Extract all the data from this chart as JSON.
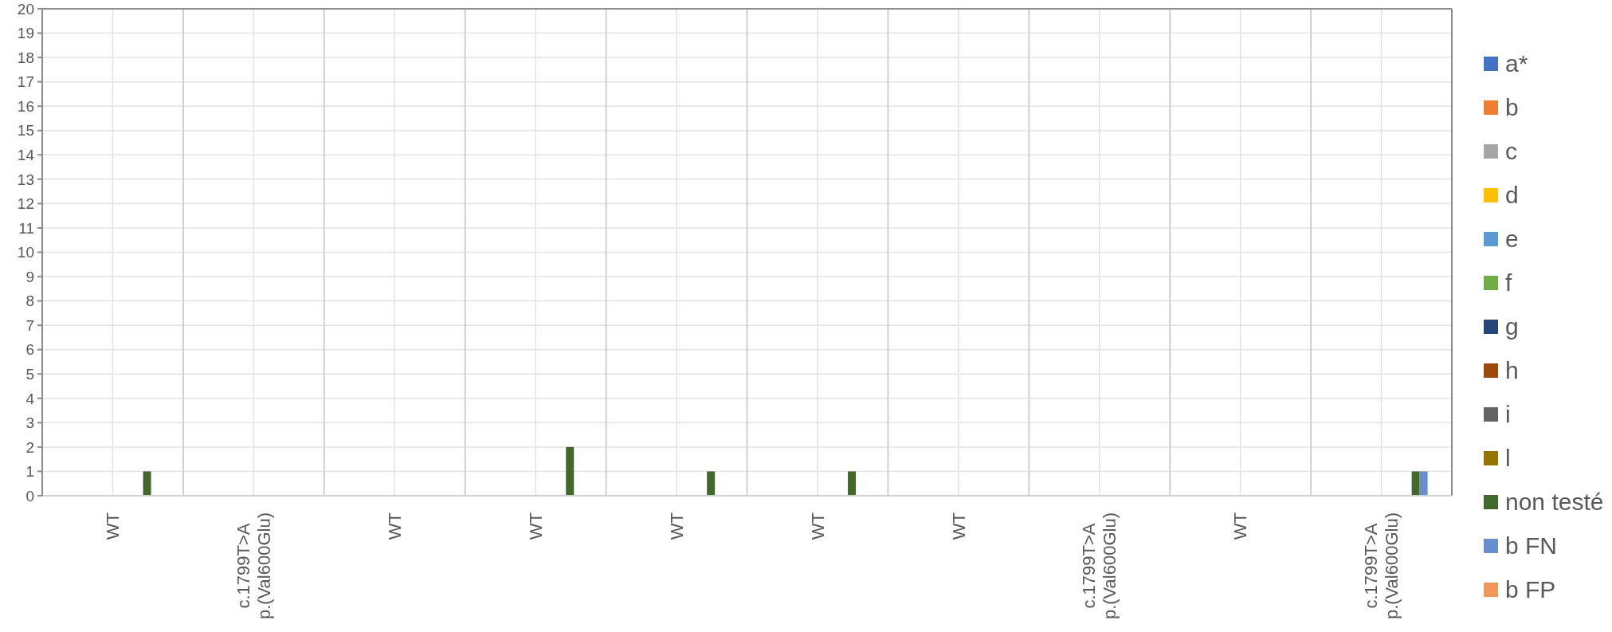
{
  "chart_data": {
    "type": "bar",
    "categories": [
      "WT",
      "c.1799T>A\np.(Val600Glu)",
      "WT",
      "WT",
      "WT",
      "WT",
      "WT",
      "c.1799T>A\np.(Val600Glu)",
      "WT",
      "c.1799T>A\np.(Val600Glu)"
    ],
    "series": [
      {
        "name": "a*",
        "color": "#4472c4",
        "values": [
          0,
          0,
          0,
          0,
          0,
          0,
          0,
          0,
          0,
          0
        ]
      },
      {
        "name": "b",
        "color": "#ed7d31",
        "values": [
          0,
          0,
          0,
          0,
          0,
          0,
          0,
          0,
          0,
          0
        ]
      },
      {
        "name": "c",
        "color": "#a5a5a5",
        "values": [
          0,
          0,
          0,
          0,
          0,
          0,
          0,
          0,
          0,
          0
        ]
      },
      {
        "name": "d",
        "color": "#ffc000",
        "values": [
          0,
          0,
          0,
          0,
          0,
          0,
          0,
          0,
          0,
          0
        ]
      },
      {
        "name": "e",
        "color": "#5b9bd5",
        "values": [
          0,
          0,
          0,
          0,
          0,
          0,
          0,
          0,
          0,
          0
        ]
      },
      {
        "name": "f",
        "color": "#70ad47",
        "values": [
          0,
          0,
          0,
          0,
          0,
          0,
          0,
          0,
          0,
          0
        ]
      },
      {
        "name": "g",
        "color": "#264478",
        "values": [
          0,
          0,
          0,
          0,
          0,
          0,
          0,
          0,
          0,
          0
        ]
      },
      {
        "name": "h",
        "color": "#9e480e",
        "values": [
          0,
          0,
          0,
          0,
          0,
          0,
          0,
          0,
          0,
          0
        ]
      },
      {
        "name": "i",
        "color": "#636363",
        "values": [
          0,
          0,
          0,
          0,
          0,
          0,
          0,
          0,
          0,
          0
        ]
      },
      {
        "name": "l",
        "color": "#997300",
        "values": [
          0,
          0,
          0,
          0,
          0,
          0,
          0,
          0,
          0,
          0
        ]
      },
      {
        "name": "non testé",
        "color": "#43682b",
        "values": [
          1,
          0,
          0,
          2,
          1,
          1,
          0,
          0,
          0,
          1
        ]
      },
      {
        "name": "b FN",
        "color": "#698ed0",
        "values": [
          0,
          0,
          0,
          0,
          0,
          0,
          0,
          0,
          0,
          1
        ]
      },
      {
        "name": "b FP",
        "color": "#f1975a",
        "values": [
          0,
          0,
          0,
          0,
          0,
          0,
          0,
          0,
          0,
          0
        ]
      }
    ],
    "ylim": [
      0,
      20
    ],
    "yticks": [
      0,
      1,
      2,
      3,
      4,
      5,
      6,
      7,
      8,
      9,
      10,
      11,
      12,
      13,
      14,
      15,
      16,
      17,
      18,
      19,
      20
    ],
    "grid": true,
    "legend": "right"
  }
}
